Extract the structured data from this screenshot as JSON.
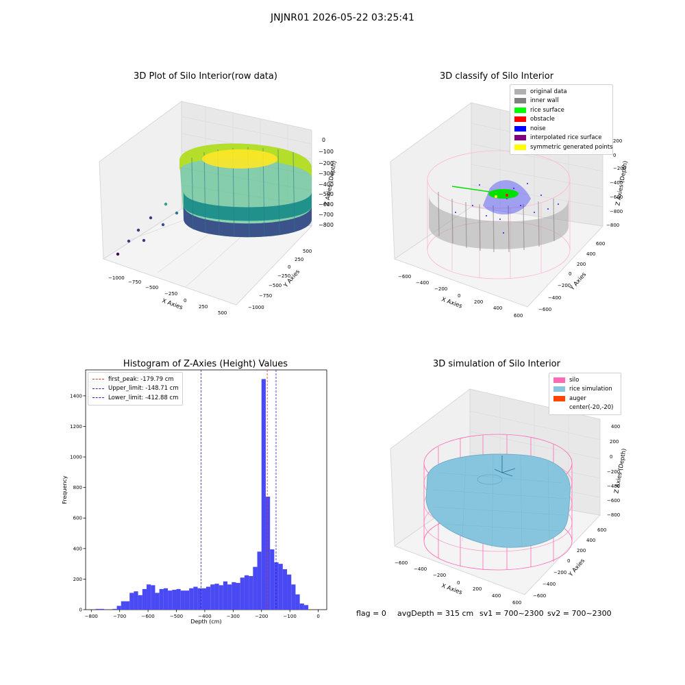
{
  "suptitle": "JNJNR01 2026-05-22 03:25:41",
  "footer": {
    "flag": "flag = 0",
    "avg": "avgDepth = 315 cm",
    "sv1": "sv1 = 700~2300",
    "sv2": "sv2 = 700~2300"
  },
  "colors": {
    "hist_bar": "#4a4af5",
    "first_peak": "#e63030",
    "limit_line": "#2020c8",
    "silo_wire": "#ff69b4",
    "rice": "#87c4dd"
  },
  "chart_data": [
    {
      "type": "scatter3d",
      "title": "3D Plot of Silo Interior(row data)",
      "xlabel": "X Axies",
      "ylabel": "Y Axies",
      "zlabel": "Z Axies (Depth)",
      "x_ticks": [
        "−1000",
        "−750",
        "−500",
        "−250",
        "0",
        "250",
        "500"
      ],
      "y_ticks": [
        "−1000",
        "−750",
        "−500",
        "−250",
        "0",
        "250",
        "500"
      ],
      "z_ticks": [
        "0",
        "−100",
        "−200",
        "−300",
        "−400",
        "−500",
        "−600",
        "−700",
        "−800"
      ],
      "colormap": "viridis"
    },
    {
      "type": "scatter3d",
      "title": "3D classify of Silo Interior",
      "xlabel": "X Axies",
      "ylabel": "Y Axies",
      "zlabel": "Z Axies (Depth)",
      "x_ticks": [
        "−600",
        "−400",
        "−200",
        "0",
        "200",
        "400",
        "600"
      ],
      "y_ticks": [
        "−600",
        "−400",
        "−200",
        "0",
        "200",
        "400",
        "600"
      ],
      "z_ticks": [
        "200",
        "0",
        "−200",
        "−400",
        "−600",
        "−800"
      ],
      "legend": [
        {
          "label": "original data",
          "color": "#b0b0b0"
        },
        {
          "label": "inner wall",
          "color": "#808080"
        },
        {
          "label": "rice surface",
          "color": "#00ff00"
        },
        {
          "label": "obstacle",
          "color": "#ff0000"
        },
        {
          "label": "noise",
          "color": "#0000ff"
        },
        {
          "label": "interpolated rice surface",
          "color": "#800080"
        },
        {
          "label": "symmetric generated points",
          "color": "#ffff00"
        }
      ]
    },
    {
      "type": "bar",
      "title": "Histogram of Z-Axies (Height) Values",
      "xlabel": "Depth (cm)",
      "ylabel": "Frequency",
      "xlim": [
        -820,
        30
      ],
      "ylim": [
        0,
        1570
      ],
      "x_ticks": [
        -800,
        -700,
        -600,
        -500,
        -400,
        -300,
        -200,
        -100,
        0
      ],
      "x_tick_labels": [
        "−800",
        "−700",
        "−600",
        "−500",
        "−400",
        "−300",
        "−200",
        "−100",
        "0"
      ],
      "y_ticks": [
        0,
        200,
        400,
        600,
        800,
        1000,
        1200,
        1400
      ],
      "y_tick_labels": [
        "0",
        "200",
        "400",
        "600",
        "800",
        "1000",
        "1200",
        "1400"
      ],
      "bin_width": 15,
      "bins_start": [
        -785,
        -770,
        -755,
        -740,
        -725,
        -710,
        -695,
        -680,
        -665,
        -650,
        -635,
        -620,
        -605,
        -590,
        -575,
        -560,
        -545,
        -530,
        -515,
        -500,
        -485,
        -470,
        -455,
        -440,
        -425,
        -410,
        -395,
        -380,
        -365,
        -350,
        -335,
        -320,
        -305,
        -290,
        -275,
        -260,
        -245,
        -230,
        -215,
        -200,
        -185,
        -170,
        -155,
        -140,
        -125,
        -110,
        -95,
        -80,
        -65,
        -50,
        -35,
        -20
      ],
      "values": [
        5,
        5,
        0,
        0,
        5,
        25,
        55,
        55,
        110,
        120,
        95,
        135,
        165,
        160,
        110,
        135,
        140,
        125,
        130,
        135,
        125,
        125,
        140,
        150,
        140,
        140,
        150,
        165,
        170,
        160,
        185,
        165,
        180,
        175,
        210,
        225,
        220,
        280,
        380,
        1510,
        740,
        395,
        310,
        300,
        265,
        230,
        165,
        100,
        40,
        30,
        0,
        0
      ],
      "legend_position": "upper left",
      "lines": [
        {
          "label": "first_peak: -179.79 cm",
          "x": -179.79,
          "color": "#e63030"
        },
        {
          "label": "Upper_limit: -148.71 cm",
          "x": -148.71,
          "color": "#2020c8"
        },
        {
          "label": "Lower_limit: -412.88 cm",
          "x": -412.88,
          "color": "#2020c8"
        }
      ]
    },
    {
      "type": "surface3d",
      "title": "3D simulation of Silo Interior",
      "xlabel": "X Axies",
      "ylabel": "Y Axies",
      "zlabel": "Z Axies (Depth)",
      "x_ticks": [
        "−600",
        "−400",
        "−200",
        "0",
        "200",
        "400",
        "600"
      ],
      "y_ticks": [
        "−600",
        "−400",
        "−200",
        "0",
        "200",
        "400",
        "600"
      ],
      "z_ticks": [
        "400",
        "200",
        "0",
        "−200",
        "−400",
        "−600",
        "−800"
      ],
      "legend": [
        {
          "label": "silo",
          "color": "#ff69b4"
        },
        {
          "label": "rice simulation",
          "color": "#87c4dd"
        },
        {
          "label": "auger",
          "color": "#ff4500"
        },
        {
          "label": "center(-20,-20)",
          "color": ""
        }
      ]
    }
  ]
}
